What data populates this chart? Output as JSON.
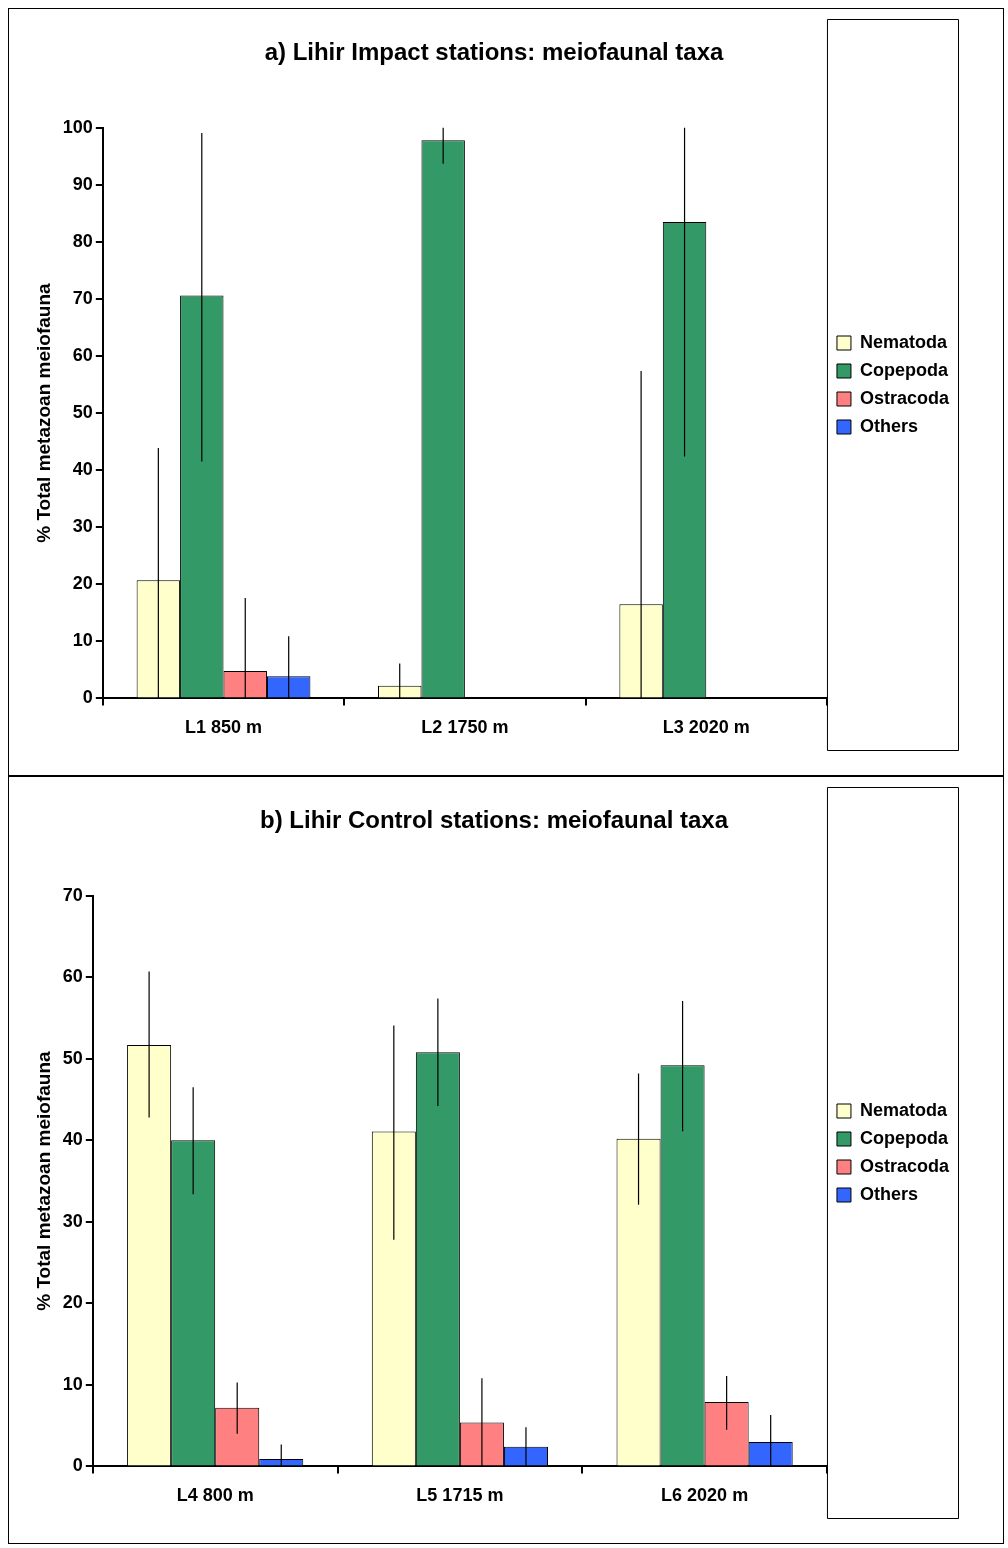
{
  "chart_data": [
    {
      "type": "bar",
      "title": "a) Lihir Impact stations: meiofaunal taxa",
      "ylabel": "% Total metazoan meiofauna",
      "categories": [
        "L1 850 m",
        "L2 1750 m",
        "L3 2020 m"
      ],
      "ylim": [
        0,
        100
      ],
      "yticks": [
        0,
        10,
        20,
        30,
        40,
        50,
        60,
        70,
        80,
        90,
        100
      ],
      "grid": false,
      "legend": "right",
      "series": [
        {
          "name": "Nematoda",
          "color": "#ffffcc",
          "values": [
            20.7,
            2.2,
            16.5
          ],
          "errors": [
            [
              0,
              43.9
            ],
            [
              0,
              6.1
            ],
            [
              0,
              57.4
            ]
          ]
        },
        {
          "name": "Copepoda",
          "color": "#339966",
          "values": [
            70.6,
            97.8,
            83.5
          ],
          "errors": [
            [
              41.5,
              99.1
            ],
            [
              93.7,
              100
            ],
            [
              42.4,
              100
            ]
          ]
        },
        {
          "name": "Ostracoda",
          "color": "#ff8080",
          "values": [
            4.8,
            0,
            0
          ],
          "errors": [
            [
              0,
              17.6
            ],
            null,
            null
          ]
        },
        {
          "name": "Others",
          "color": "#3366ff",
          "values": [
            3.9,
            0,
            0
          ],
          "errors": [
            [
              0,
              10.9
            ],
            null,
            null
          ]
        }
      ]
    },
    {
      "type": "bar",
      "title": "b) Lihir Control stations: meiofaunal taxa",
      "ylabel": "% Total metazoan meiofauna",
      "categories": [
        "L4 800 m",
        "L5 1715 m",
        "L6 2020 m"
      ],
      "ylim": [
        0,
        70
      ],
      "yticks": [
        0,
        10,
        20,
        30,
        40,
        50,
        60,
        70
      ],
      "grid": false,
      "legend": "right",
      "series": [
        {
          "name": "Nematoda",
          "color": "#ffffcc",
          "values": [
            51.7,
            41.1,
            40.2
          ],
          "errors": [
            [
              42.8,
              60.7
            ],
            [
              27.8,
              54.1
            ],
            [
              32.1,
              48.2
            ]
          ]
        },
        {
          "name": "Copepoda",
          "color": "#339966",
          "values": [
            40.0,
            50.8,
            49.2
          ],
          "errors": [
            [
              33.4,
              46.5
            ],
            [
              44.2,
              57.4
            ],
            [
              41.1,
              57.1
            ]
          ]
        },
        {
          "name": "Ostracoda",
          "color": "#ff8080",
          "values": [
            7.2,
            5.4,
            7.9
          ],
          "errors": [
            [
              4.0,
              10.3
            ],
            [
              0,
              10.8
            ],
            [
              4.5,
              11.1
            ]
          ]
        },
        {
          "name": "Others",
          "color": "#3366ff",
          "values": [
            0.9,
            2.4,
            3.0
          ],
          "errors": [
            [
              0,
              2.7
            ],
            [
              0,
              4.8
            ],
            [
              0,
              6.3
            ]
          ]
        }
      ]
    }
  ]
}
